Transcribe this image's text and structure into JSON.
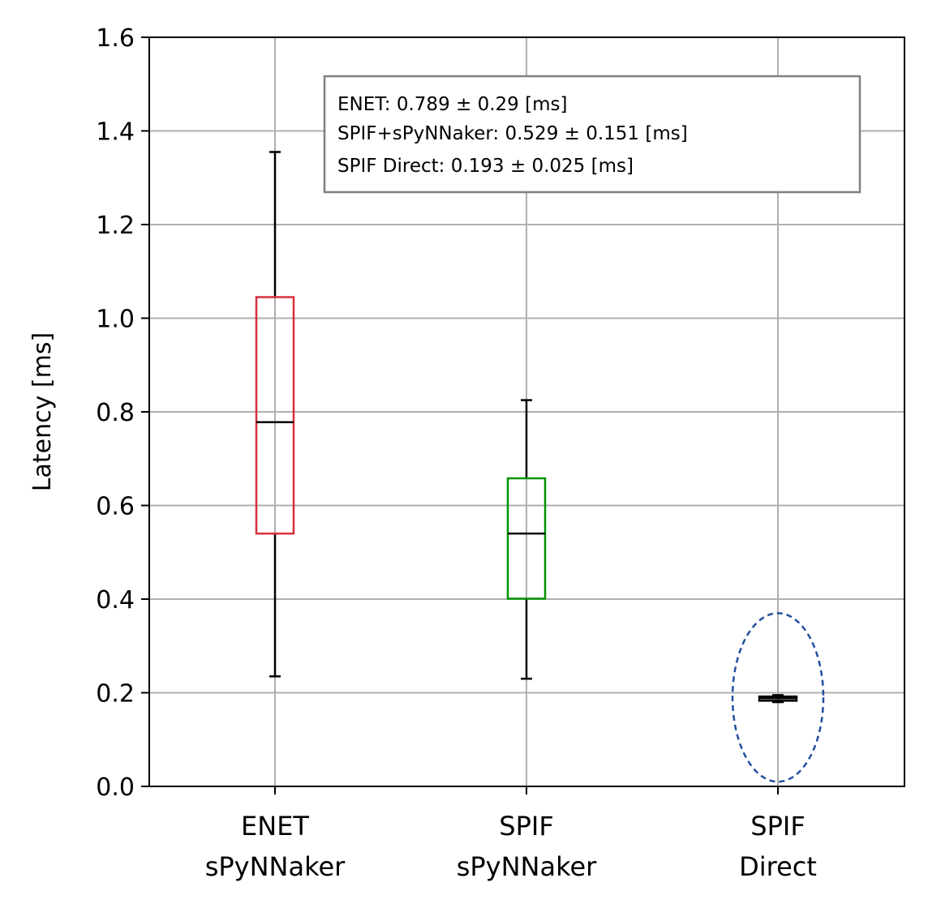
{
  "chart_data": {
    "type": "box",
    "ylabel": "Latency [ms]",
    "ylim": [
      0,
      1.6
    ],
    "yticks": [
      "0.0",
      "0.2",
      "0.4",
      "0.6",
      "0.8",
      "1.0",
      "1.2",
      "1.4",
      "1.6"
    ],
    "grid": true,
    "categories": [
      {
        "line1": "ENET",
        "line2": "sPyNNaker"
      },
      {
        "line1": "SPIF",
        "line2": "sPyNNaker"
      },
      {
        "line1": "SPIF",
        "line2": "Direct"
      }
    ],
    "boxes": [
      {
        "whisker_low": 0.235,
        "q1": 0.54,
        "median": 0.778,
        "q3": 1.045,
        "whisker_high": 1.355,
        "color": "#d62f3c"
      },
      {
        "whisker_low": 0.23,
        "q1": 0.401,
        "median": 0.54,
        "q3": 0.658,
        "whisker_high": 0.825,
        "color": "#009400"
      },
      {
        "whisker_low": 0.18,
        "q1": 0.183,
        "median": 0.188,
        "q3": 0.192,
        "whisker_high": 0.195,
        "color": "#000000"
      }
    ],
    "highlight_ellipse": {
      "category_index": 2,
      "y_low": 0.01,
      "y_high": 0.37,
      "color": "#1f4fa0",
      "style": "dashed"
    },
    "annotation": [
      "ENET: 0.789 ± 0.29 [ms]",
      "SPIF+sPyNNaker: 0.529 ± 0.151 [ms]",
      "SPIF Direct: 0.193 ± 0.025 [ms]"
    ]
  }
}
